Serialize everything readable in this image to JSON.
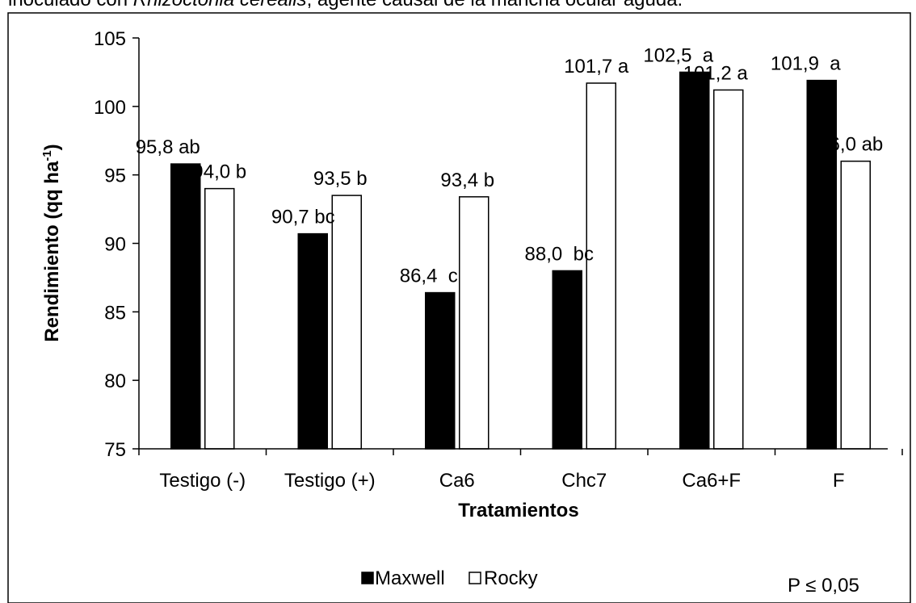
{
  "caption": {
    "prefix": "inoculado con ",
    "organism": "Rhizoctonia cerealis",
    "suffix": ", agente causal de la mancha ocular aguda."
  },
  "chart_data": {
    "type": "bar",
    "categories": [
      "Testigo (-)",
      "Testigo (+)",
      "Ca6",
      "Chc7",
      "Ca6+F",
      "F"
    ],
    "series": [
      {
        "name": "Maxwell",
        "color": "#000000",
        "values": [
          95.8,
          90.7,
          86.4,
          88.0,
          102.5,
          101.9
        ],
        "labels": [
          "95,8 ab",
          "90,7 bc",
          "86,4  c",
          "88,0  bc",
          "102,5  a",
          "101,9  a"
        ]
      },
      {
        "name": "Rocky",
        "color": "#ffffff",
        "values": [
          94.0,
          93.5,
          93.4,
          101.7,
          101.2,
          96.0
        ],
        "labels": [
          "94,0 b",
          "93,5 b",
          "93,4 b",
          "101,7 a",
          "101,2 a",
          "96,0 ab"
        ]
      }
    ],
    "xlabel": "Tratamientos",
    "ylabel": "Rendimiento (qq ha",
    "ylabel_sup": "-1",
    "ylabel_end": ")",
    "ylim": [
      75,
      105
    ],
    "yticks": [
      "75",
      "80",
      "85",
      "90",
      "95",
      "100",
      "105"
    ],
    "legend_position": "bottom-center",
    "annotation": "P ≤ 0,05"
  }
}
